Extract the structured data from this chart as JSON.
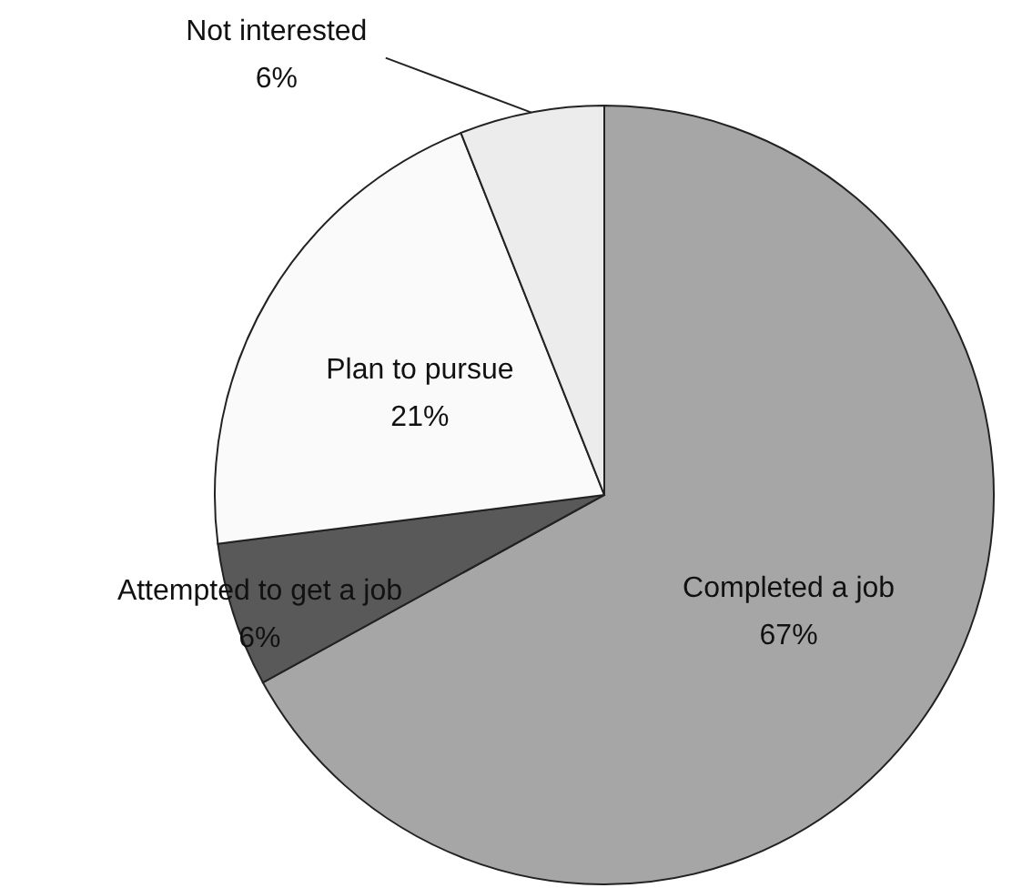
{
  "chart_data": {
    "type": "pie",
    "categories": [
      "Completed a job",
      "Attempted to get a job",
      "Plan to pursue",
      "Not interested"
    ],
    "values": [
      67,
      6,
      21,
      6
    ],
    "value_labels": [
      "67%",
      "6%",
      "21%",
      "6%"
    ],
    "colors": [
      "#a6a6a6",
      "#595959",
      "#fafafa",
      "#ececec"
    ],
    "legend": false
  }
}
